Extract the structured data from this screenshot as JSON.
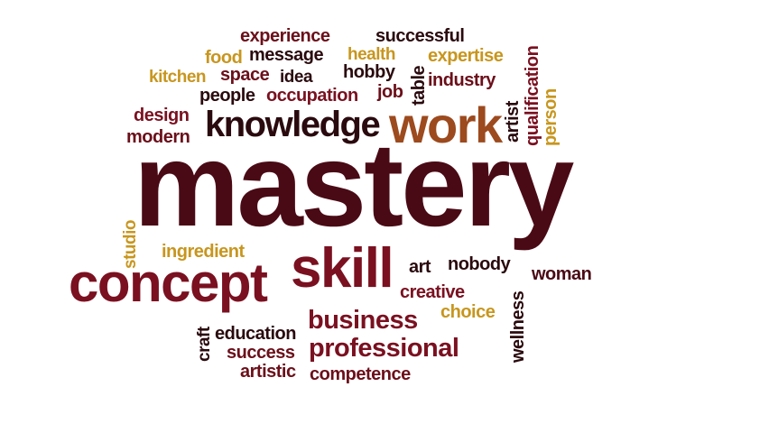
{
  "colors": {
    "dark_maroon": "#4a0a15",
    "maroon": "#6b0f1a",
    "crimson": "#7a1020",
    "brown": "#9c4a1e",
    "gold": "#c8961e",
    "near_black": "#2a0a0e"
  },
  "words": {
    "experience": "experience",
    "successful": "successful",
    "food": "food",
    "message": "message",
    "health": "health",
    "expertise": "expertise",
    "qualification": "qualification",
    "kitchen": "kitchen",
    "space": "space",
    "idea": "idea",
    "hobby": "hobby",
    "table": "table",
    "industry": "industry",
    "people": "people",
    "occupation": "occupation",
    "job": "job",
    "person": "person",
    "artist": "artist",
    "design": "design",
    "modern": "modern",
    "knowledge": "knowledge",
    "work": "work",
    "mastery": "mastery",
    "studio": "studio",
    "ingredient": "ingredient",
    "concept": "concept",
    "skill": "skill",
    "art": "art",
    "nobody": "nobody",
    "woman": "woman",
    "creative": "creative",
    "wellness": "wellness",
    "choice": "choice",
    "business": "business",
    "craft": "craft",
    "education": "education",
    "success": "success",
    "professional": "professional",
    "artistic": "artistic",
    "competence": "competence"
  }
}
